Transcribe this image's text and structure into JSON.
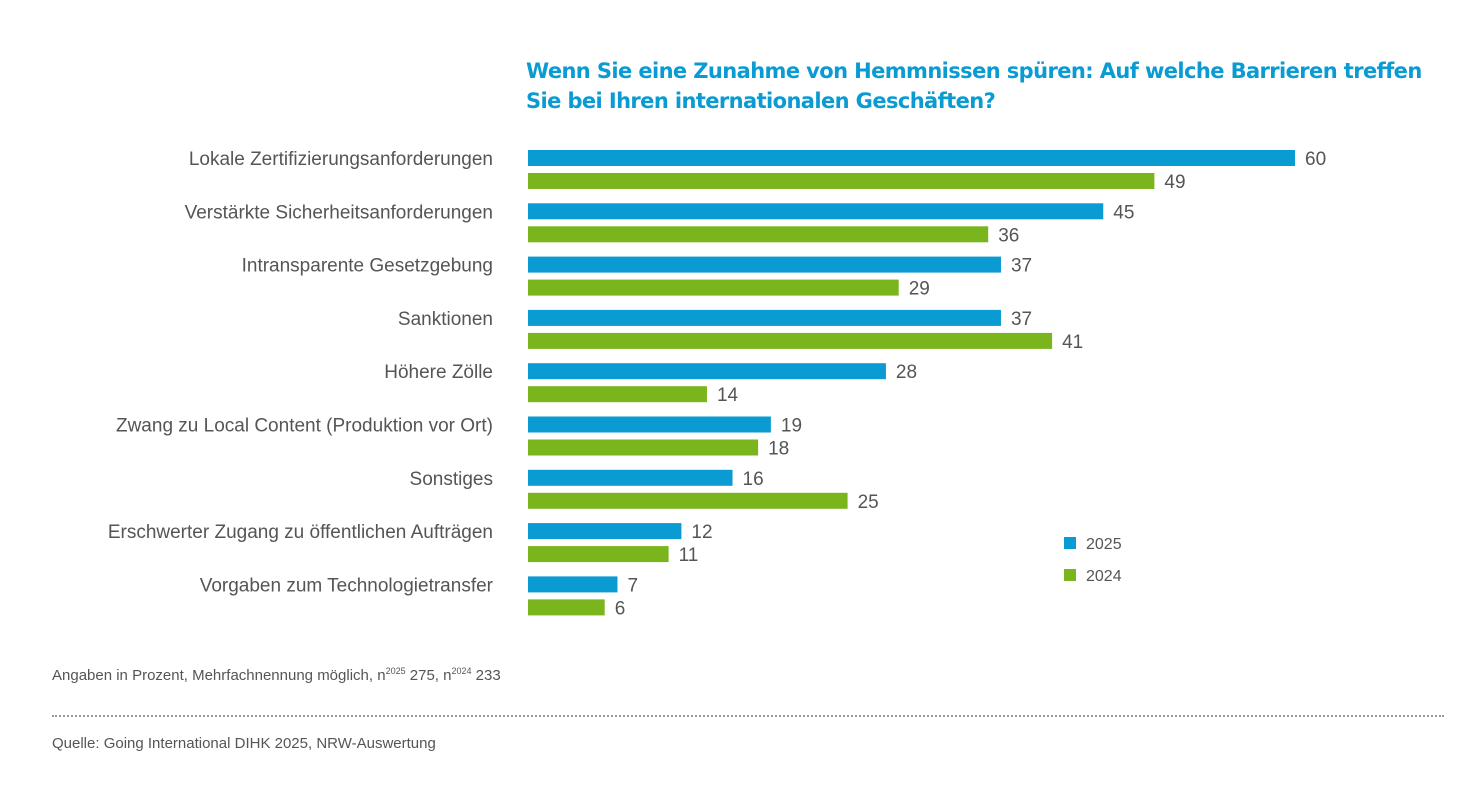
{
  "title_lines": [
    "Wenn Sie eine Zunahme von Hemmnissen spüren: Auf welche Barrieren treffen",
    "Sie bei Ihren internationalen Geschäften?"
  ],
  "colors": {
    "series_2025": "#0a9bd3",
    "series_2024": "#7ab51d",
    "title": "#0a9bd3",
    "text": "#555555"
  },
  "chart_data": {
    "type": "bar",
    "orientation": "horizontal",
    "title": "Wenn Sie eine Zunahme von Hemmnissen spüren: Auf welche Barrieren treffen Sie bei Ihren internationalen Geschäften?",
    "categories": [
      "Lokale Zertifizierungsanforderungen",
      "Verstärkte Sicherheitsanforderungen",
      "Intransparente Gesetzgebung",
      "Sanktionen",
      "Höhere Zölle",
      "Zwang zu Local Content (Produktion vor Ort)",
      "Sonstiges",
      "Erschwerter Zugang zu öffentlichen Aufträgen",
      "Vorgaben zum Technologietransfer"
    ],
    "series": [
      {
        "name": "2025",
        "color": "#0a9bd3",
        "values": [
          60,
          45,
          37,
          37,
          28,
          19,
          16,
          12,
          7
        ]
      },
      {
        "name": "2024",
        "color": "#7ab51d",
        "values": [
          49,
          36,
          29,
          41,
          14,
          18,
          25,
          11,
          6
        ]
      }
    ],
    "xlabel": "",
    "ylabel": "",
    "xlim": [
      0,
      60
    ],
    "grid": false,
    "legend": {
      "position": "bottom-right",
      "entries": [
        "2025",
        "2024"
      ]
    },
    "data_labels": true
  },
  "footnote": {
    "text_before": "Angaben in Prozent, Mehrfachnennung möglich, n",
    "sup_1": "2025",
    "mid": " 275, n",
    "sup_2": "2024",
    "text_after": " 233"
  },
  "source": "Quelle: Going International DIHK 2025, NRW-Auswertung"
}
